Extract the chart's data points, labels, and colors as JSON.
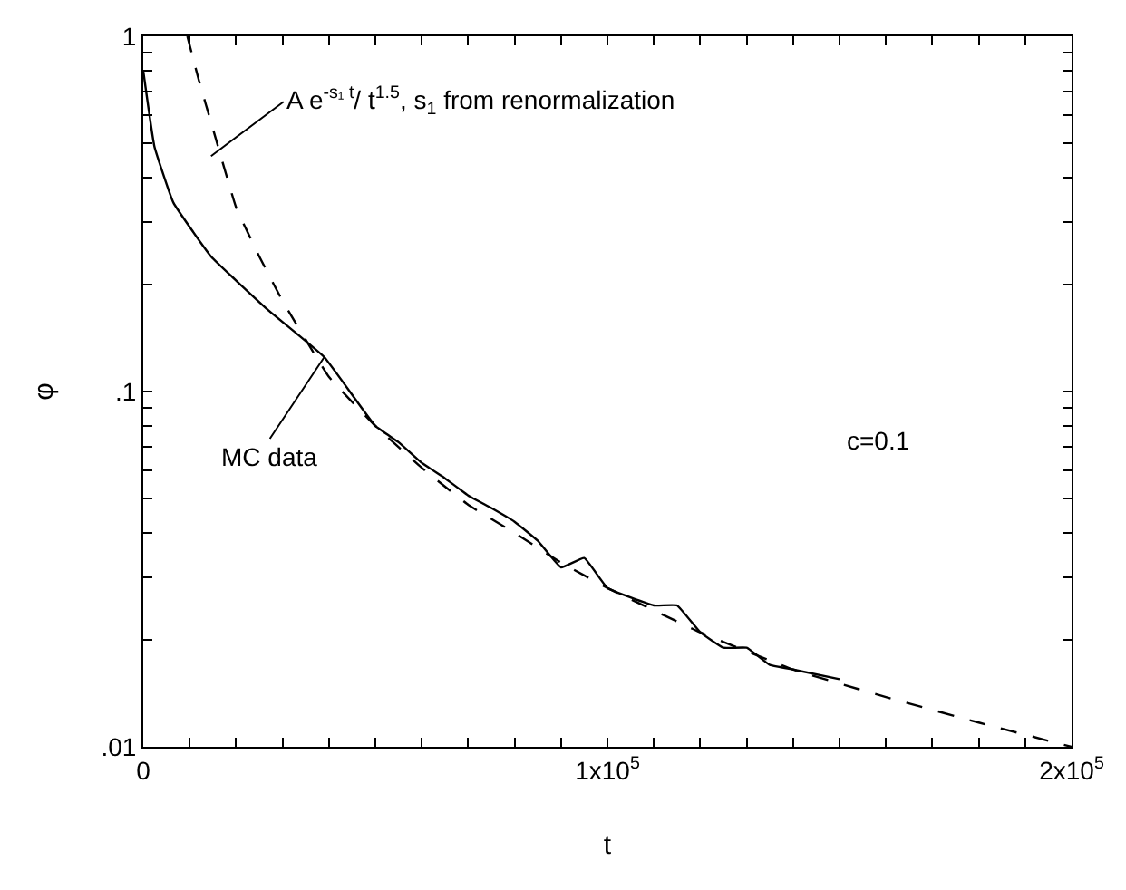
{
  "chart_data": {
    "type": "line",
    "xlabel": "t",
    "ylabel": "φ",
    "log": "y",
    "xlim": [
      0,
      200000
    ],
    "ylim": [
      0.01,
      1
    ],
    "xticks": [
      {
        "value": 0,
        "label": "0"
      },
      {
        "value": 10000,
        "label": null
      },
      {
        "value": 20000,
        "label": null
      },
      {
        "value": 30000,
        "label": null
      },
      {
        "value": 40000,
        "label": null
      },
      {
        "value": 50000,
        "label": null
      },
      {
        "value": 60000,
        "label": null
      },
      {
        "value": 70000,
        "label": null
      },
      {
        "value": 80000,
        "label": null
      },
      {
        "value": 90000,
        "label": null
      },
      {
        "value": 100000,
        "label": "1x10$^{5}$"
      },
      {
        "value": 110000,
        "label": null
      },
      {
        "value": 120000,
        "label": null
      },
      {
        "value": 130000,
        "label": null
      },
      {
        "value": 140000,
        "label": null
      },
      {
        "value": 150000,
        "label": null
      },
      {
        "value": 160000,
        "label": null
      },
      {
        "value": 170000,
        "label": null
      },
      {
        "value": 180000,
        "label": null
      },
      {
        "value": 190000,
        "label": null
      },
      {
        "value": 200000,
        "label": "2x10$^{5}$"
      }
    ],
    "yticks": [
      {
        "value": 0.01,
        "label": ".01"
      },
      {
        "value": 0.02,
        "label": null
      },
      {
        "value": 0.03,
        "label": null
      },
      {
        "value": 0.04,
        "label": null
      },
      {
        "value": 0.05,
        "label": null
      },
      {
        "value": 0.06,
        "label": null
      },
      {
        "value": 0.07,
        "label": null
      },
      {
        "value": 0.08,
        "label": null
      },
      {
        "value": 0.09,
        "label": null
      },
      {
        "value": 0.1,
        "label": ".1"
      },
      {
        "value": 0.2,
        "label": null
      },
      {
        "value": 0.3,
        "label": null
      },
      {
        "value": 0.4,
        "label": null
      },
      {
        "value": 0.5,
        "label": null
      },
      {
        "value": 0.6,
        "label": null
      },
      {
        "value": 0.7,
        "label": null
      },
      {
        "value": 0.8,
        "label": null
      },
      {
        "value": 0.9,
        "label": null
      },
      {
        "value": 1,
        "label": "1"
      }
    ],
    "marker": "none",
    "series": [
      {
        "color": "#000000",
        "line_style": "solid",
        "x": [
          0,
          2400,
          6500,
          14600,
          26800,
          39000,
          50000,
          55000,
          60000,
          65000,
          70000,
          75000,
          80000,
          85000,
          90000,
          95000,
          100000,
          110000,
          115000,
          120000,
          125000,
          130000,
          135000,
          140000,
          150000
        ],
        "values": [
          0.8,
          0.49,
          0.34,
          0.24,
          0.17,
          0.125,
          0.08,
          0.072,
          0.063,
          0.057,
          0.051,
          0.047,
          0.043,
          0.038,
          0.032,
          0.034,
          0.028,
          0.025,
          0.025,
          0.021,
          0.019,
          0.019,
          0.017,
          0.0165,
          0.0155
        ]
      },
      {
        "color": "#000000",
        "line_style": "dashed",
        "x": [
          9500,
          12000,
          15000,
          20000,
          25000,
          30000,
          40000,
          50000,
          60000,
          70000,
          80000,
          90000,
          100000,
          120000,
          140000,
          160000,
          180000,
          200000
        ],
        "values": [
          1.0,
          0.75,
          0.55,
          0.33,
          0.24,
          0.18,
          0.11,
          0.08,
          0.061,
          0.048,
          0.04,
          0.033,
          0.028,
          0.021,
          0.0165,
          0.0138,
          0.0117,
          0.01
        ]
      }
    ],
    "annotations": [
      {
        "text": "A e$^{-s₁ t}$/ t$^{1.5}$, s$_{1}$ from renormalization",
        "x": 14600,
        "y": 0.46
      },
      {
        "text": "MC data",
        "x": 39000,
        "y": 0.125
      },
      "c=0.1"
    ]
  }
}
